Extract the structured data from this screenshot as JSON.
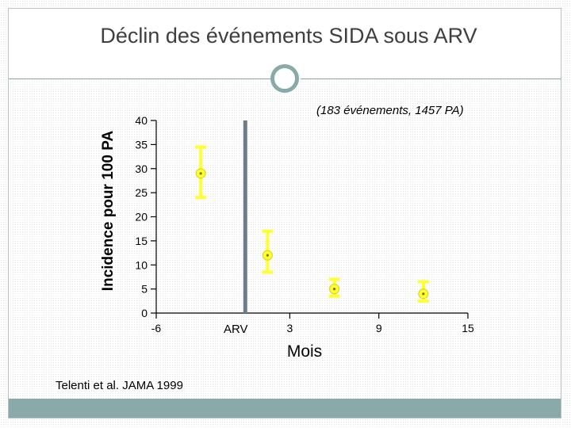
{
  "slide": {
    "title": "Déclin des événements SIDA sous ARV",
    "citation": "Telenti et al.  JAMA 1999"
  },
  "colors": {
    "accent": "#8aa9a9",
    "point_fill": "#ffff33",
    "marker_line": "#6e7b8b"
  },
  "chart_data": {
    "type": "scatter",
    "title": "",
    "xlabel": "Mois",
    "ylabel": "Incidence pour 100 PA",
    "xlim": [
      -6,
      15
    ],
    "ylim": [
      0,
      40
    ],
    "x_ticks": [
      -6,
      3,
      9,
      15
    ],
    "y_ticks": [
      0,
      5,
      10,
      15,
      20,
      25,
      30,
      35,
      40
    ],
    "grid": false,
    "annotation": "(183 événements, 1457 PA)",
    "marker": {
      "x": 0,
      "label": "ARV"
    },
    "points": [
      {
        "x": -3,
        "y": 29,
        "low": 24,
        "high": 34.5
      },
      {
        "x": 1.5,
        "y": 12,
        "low": 8.5,
        "high": 17
      },
      {
        "x": 6,
        "y": 5,
        "low": 3.5,
        "high": 7
      },
      {
        "x": 12,
        "y": 4,
        "low": 2.5,
        "high": 6.5
      }
    ]
  }
}
